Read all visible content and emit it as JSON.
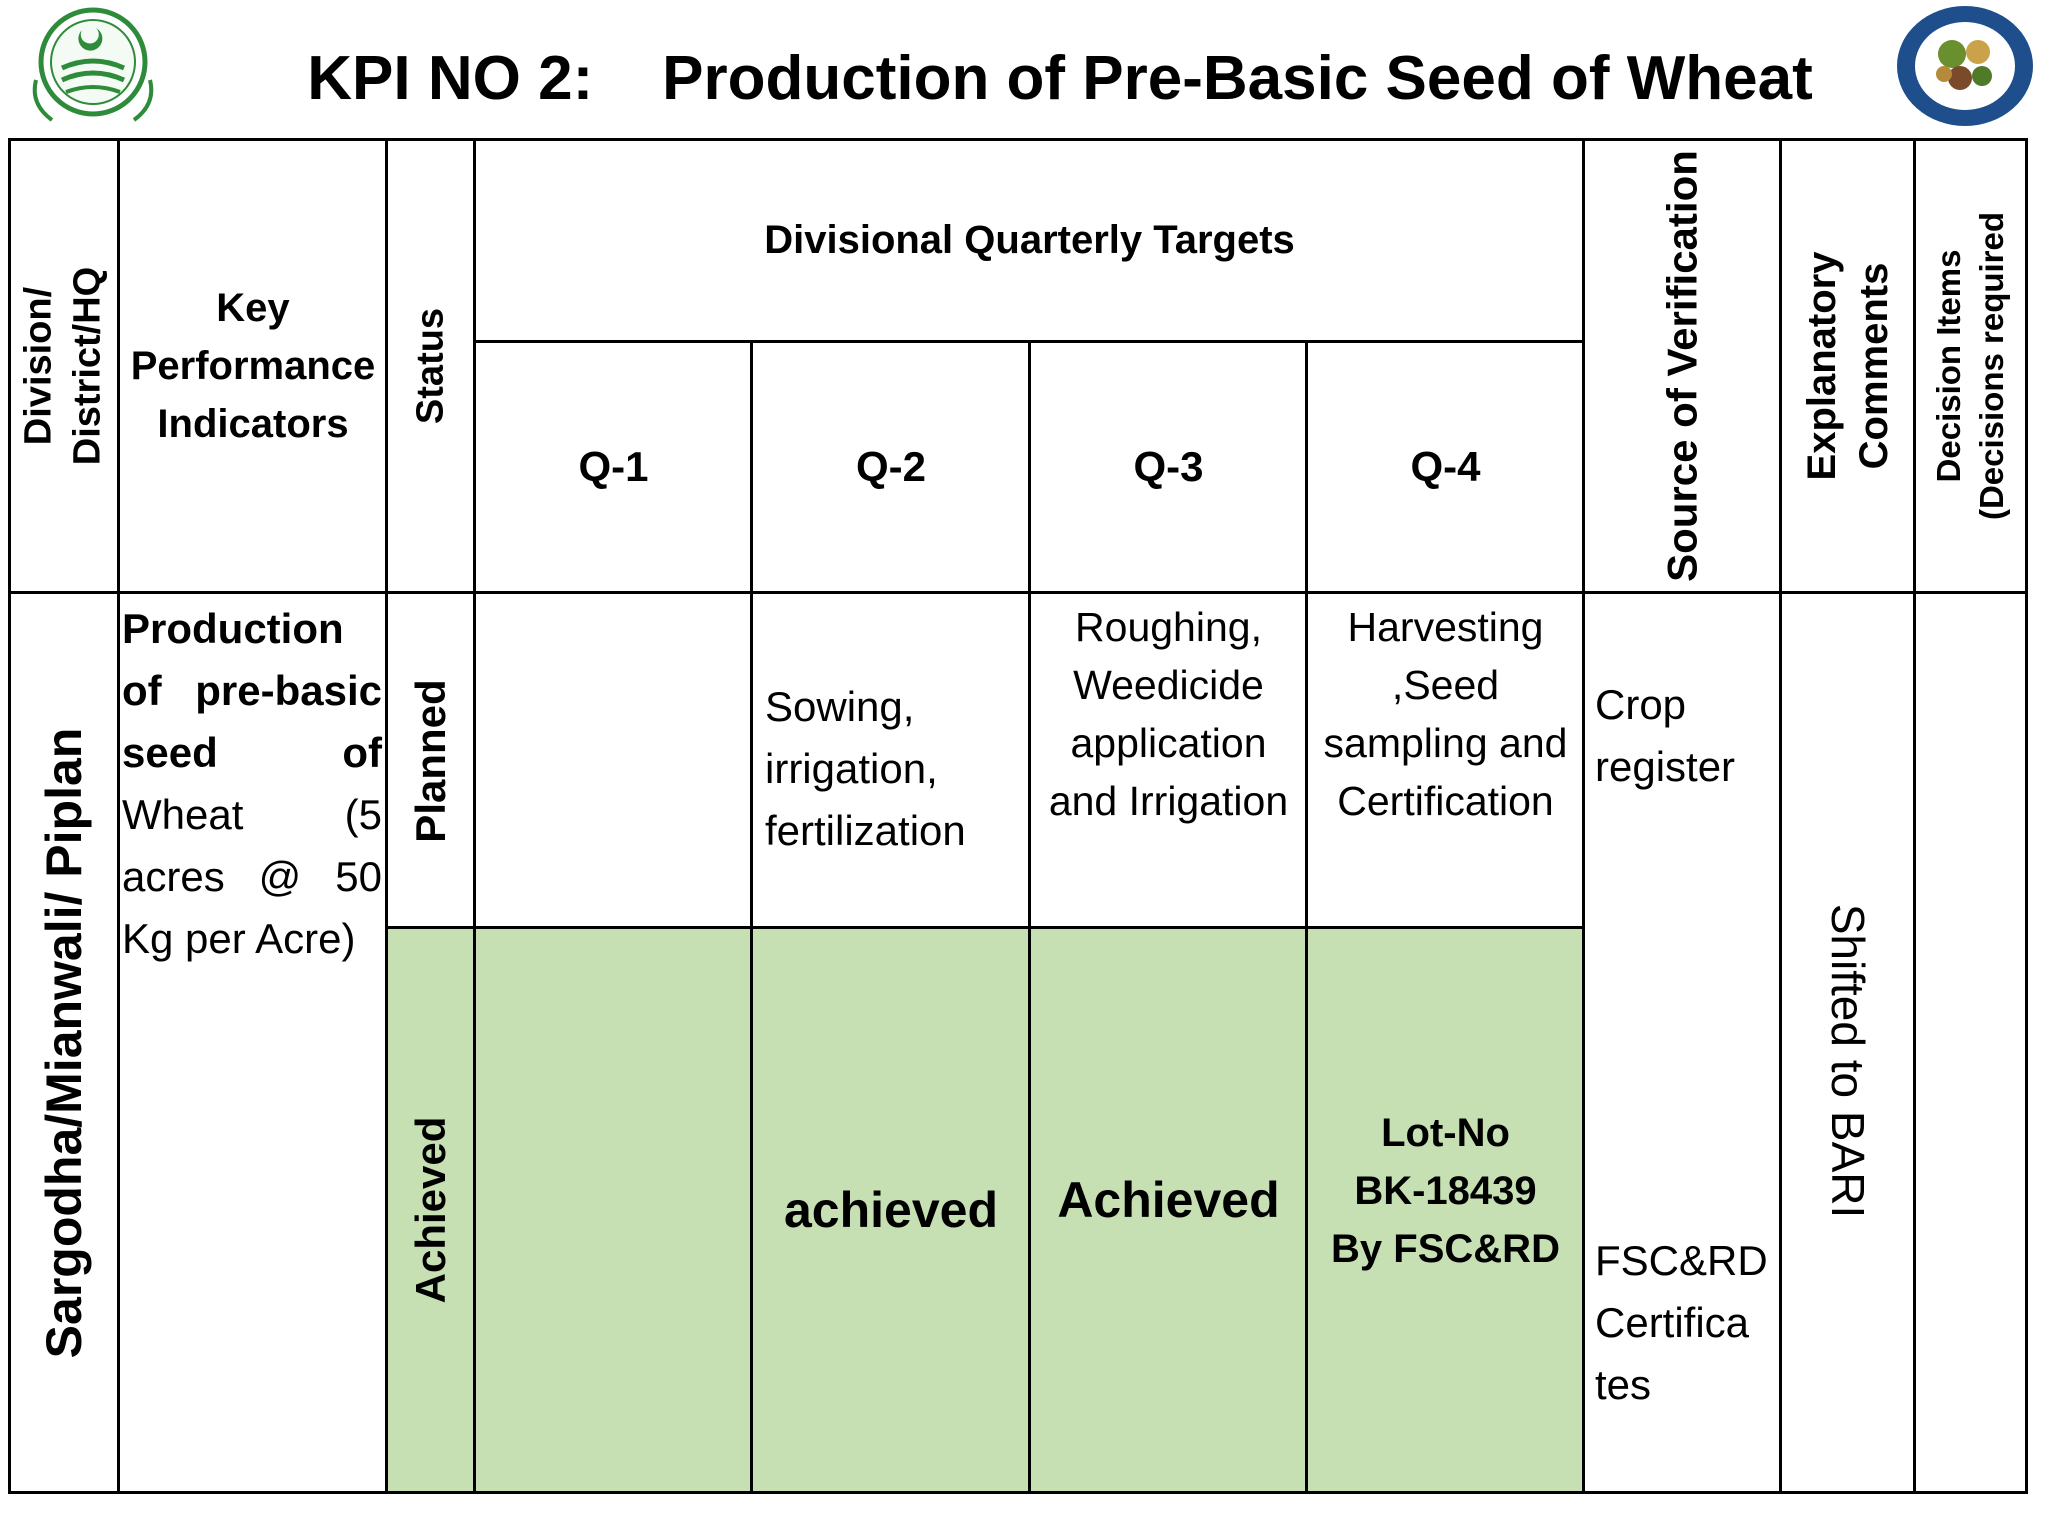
{
  "title": "KPI NO 2:    Production of Pre-Basic Seed of Wheat",
  "headers": {
    "division": [
      "Division/",
      "District/HQ"
    ],
    "kpi": "Key Performance Indicators",
    "status": "Status",
    "targets": "Divisional Quarterly Targets",
    "quarters": [
      "Q-1",
      "Q-2",
      "Q-3",
      "Q-4"
    ],
    "source": "Source of Verification",
    "comments": [
      "Explanatory",
      "Comments"
    ],
    "decision": [
      "Decision Items",
      "(Decisions required"
    ]
  },
  "row": {
    "division": "Sargodha/Mianwali/ Piplan",
    "kpi_bold": "Production of pre-basic seed of",
    "kpi_rest": "Wheat (5 acres @ 50 Kg per Acre)",
    "planned": {
      "status": "Planned",
      "q1": "",
      "q2": [
        "Sowing,",
        "irrigation,",
        "fertilization"
      ],
      "q3": [
        "Roughing,",
        "Weedicide",
        "application",
        "and Irrigation"
      ],
      "q4": [
        "Harvesting",
        ",Seed",
        "sampling and",
        "Certification"
      ],
      "source": [
        "Crop",
        "register"
      ]
    },
    "achieved": {
      "status": "Achieved",
      "q1": "",
      "q2": "achieved",
      "q3": "Achieved",
      "q4": [
        "Lot-No",
        "BK-18439",
        "By FSC&RD"
      ],
      "source": [
        "FSC&RD",
        "Certifica",
        "tes"
      ]
    },
    "comments": "Shifted to BARI",
    "decision": ""
  },
  "colors": {
    "achieved_fill": "#c6e0b4",
    "border": "#000000"
  }
}
